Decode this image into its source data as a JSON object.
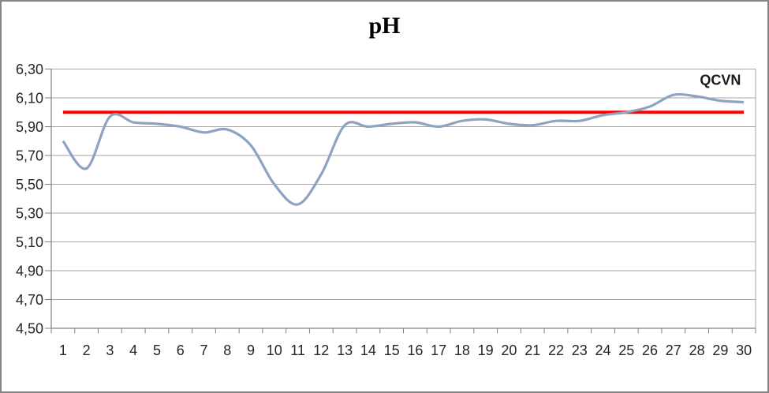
{
  "chart_data": {
    "type": "line",
    "title": "pH",
    "x": [
      1,
      2,
      3,
      4,
      5,
      6,
      7,
      8,
      9,
      10,
      11,
      12,
      13,
      14,
      15,
      16,
      17,
      18,
      19,
      20,
      21,
      22,
      23,
      24,
      25,
      26,
      27,
      28,
      29,
      30
    ],
    "series": [
      {
        "name": "pH",
        "color": "#8EA3C1",
        "smooth": true,
        "stroke_width": 3.2,
        "values": [
          5.8,
          5.61,
          5.97,
          5.93,
          5.92,
          5.9,
          5.86,
          5.88,
          5.77,
          5.5,
          5.36,
          5.57,
          5.91,
          5.9,
          5.92,
          5.93,
          5.9,
          5.94,
          5.95,
          5.92,
          5.91,
          5.94,
          5.94,
          5.98,
          6.0,
          6.04,
          6.12,
          6.11,
          6.08,
          6.07
        ]
      },
      {
        "name": "QCVN",
        "color": "#FF0000",
        "smooth": false,
        "stroke_width": 4,
        "values": [
          6.0,
          6.0,
          6.0,
          6.0,
          6.0,
          6.0,
          6.0,
          6.0,
          6.0,
          6.0,
          6.0,
          6.0,
          6.0,
          6.0,
          6.0,
          6.0,
          6.0,
          6.0,
          6.0,
          6.0,
          6.0,
          6.0,
          6.0,
          6.0,
          6.0,
          6.0,
          6.0,
          6.0,
          6.0,
          6.0
        ]
      }
    ],
    "ylim": [
      4.5,
      6.3
    ],
    "yticks": {
      "values": [
        4.5,
        4.7,
        4.9,
        5.1,
        5.3,
        5.5,
        5.7,
        5.9,
        6.1,
        6.3
      ],
      "labels": [
        "4,50",
        "4,70",
        "4,90",
        "5,10",
        "5,30",
        "5,50",
        "5,70",
        "5,90",
        "6,10",
        "6,30"
      ]
    },
    "xtick_labels": [
      "1",
      "2",
      "3",
      "4",
      "5",
      "6",
      "7",
      "8",
      "9",
      "10",
      "11",
      "12",
      "13",
      "14",
      "15",
      "16",
      "17",
      "18",
      "19",
      "20",
      "21",
      "22",
      "23",
      "24",
      "25",
      "26",
      "27",
      "28",
      "29",
      "30"
    ],
    "grid": "horizontal",
    "legend": "none",
    "annotation": {
      "text": "QCVN",
      "x": 29,
      "y": 6.19
    },
    "colors": {
      "grid": "#A6A6A6",
      "axis": "#808080",
      "tick_text": "#262626",
      "title_text": "#000000"
    }
  }
}
